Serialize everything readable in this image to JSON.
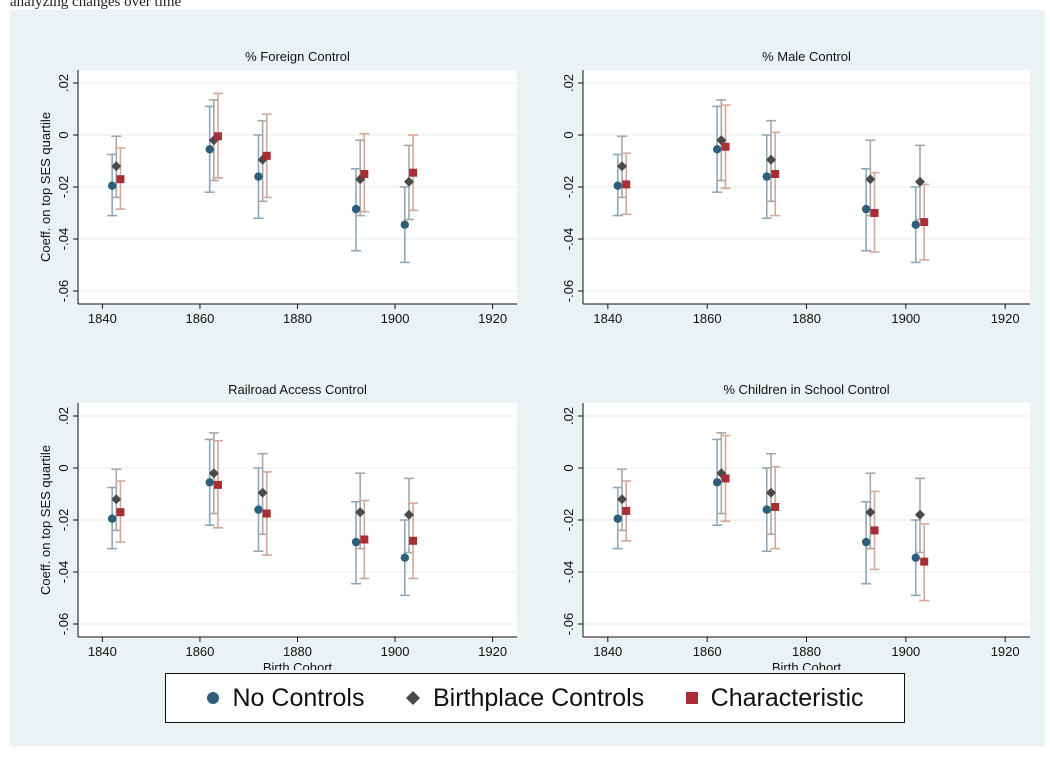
{
  "caption_fragment": "analyzing changes over time",
  "shared_axes": {
    "ylabel": "Coeff. on top SES quartile",
    "xlabel": "Birth Cohort",
    "xlim": [
      1835,
      1925
    ],
    "ylim": [
      -0.065,
      0.025
    ],
    "xticks": [
      1840,
      1860,
      1880,
      1900,
      1920
    ],
    "xtick_labels": [
      "1840",
      "1860",
      "1880",
      "1900",
      "1920"
    ],
    "yticks": [
      0.02,
      0,
      -0.02,
      -0.04,
      -0.06
    ],
    "ytick_labels": [
      ".02",
      "0",
      "-.02",
      "-.04",
      "-.06"
    ],
    "grid": "horizontal"
  },
  "series_styles": [
    {
      "name": "No Controls",
      "color": "#2d5f7a",
      "error_color": "#8fa8ba",
      "marker": "circle"
    },
    {
      "name": "Birthplace Controls",
      "color": "#4a4a4a",
      "error_color": "#a8a8a8",
      "marker": "diamond"
    },
    {
      "name": "Characteristic",
      "color": "#a82d35",
      "error_color": "#d4a89a",
      "marker": "square"
    }
  ],
  "chart_data": [
    {
      "type": "scatter",
      "title": "% Foreign Control",
      "x": [
        1842,
        1862,
        1872,
        1892,
        1902
      ],
      "series": [
        {
          "name": "No Controls",
          "x_offset": 0,
          "values": [
            -0.0195,
            -0.0055,
            -0.016,
            -0.0285,
            -0.0345
          ],
          "lower": [
            -0.031,
            -0.022,
            -0.032,
            -0.0445,
            -0.049
          ],
          "upper": [
            -0.0075,
            0.011,
            0.0,
            -0.013,
            -0.02
          ]
        },
        {
          "name": "Birthplace Controls",
          "x_offset": 1,
          "values": [
            -0.012,
            -0.002,
            -0.0095,
            -0.017,
            -0.018
          ],
          "lower": [
            -0.024,
            -0.0175,
            -0.0255,
            -0.031,
            -0.0325
          ],
          "upper": [
            -0.0005,
            0.0135,
            0.0055,
            -0.002,
            -0.004
          ]
        },
        {
          "name": "Characteristic",
          "x_offset": 2,
          "values": [
            -0.017,
            -0.0005,
            -0.008,
            -0.015,
            -0.0145
          ],
          "lower": [
            -0.0285,
            -0.0165,
            -0.024,
            -0.0295,
            -0.029
          ],
          "upper": [
            -0.005,
            0.016,
            0.008,
            0.0005,
            0.0
          ]
        }
      ]
    },
    {
      "type": "scatter",
      "title": "% Male Control",
      "x": [
        1842,
        1862,
        1872,
        1892,
        1902
      ],
      "series": [
        {
          "name": "No Controls",
          "x_offset": 0,
          "values": [
            -0.0195,
            -0.0055,
            -0.016,
            -0.0285,
            -0.0345
          ],
          "lower": [
            -0.031,
            -0.022,
            -0.032,
            -0.0445,
            -0.049
          ],
          "upper": [
            -0.0075,
            0.011,
            0.0,
            -0.013,
            -0.02
          ]
        },
        {
          "name": "Birthplace Controls",
          "x_offset": 1,
          "values": [
            -0.012,
            -0.002,
            -0.0095,
            -0.017,
            -0.018
          ],
          "lower": [
            -0.024,
            -0.0175,
            -0.0255,
            -0.031,
            -0.0325
          ],
          "upper": [
            -0.0005,
            0.0135,
            0.0055,
            -0.002,
            -0.004
          ]
        },
        {
          "name": "Characteristic",
          "x_offset": 2,
          "values": [
            -0.019,
            -0.0045,
            -0.015,
            -0.03,
            -0.0335
          ],
          "lower": [
            -0.0305,
            -0.0205,
            -0.031,
            -0.045,
            -0.048
          ],
          "upper": [
            -0.007,
            0.0115,
            0.001,
            -0.0145,
            -0.019
          ]
        }
      ]
    },
    {
      "type": "scatter",
      "title": "Railroad Access Control",
      "x": [
        1842,
        1862,
        1872,
        1892,
        1902
      ],
      "series": [
        {
          "name": "No Controls",
          "x_offset": 0,
          "values": [
            -0.0195,
            -0.0055,
            -0.016,
            -0.0285,
            -0.0345
          ],
          "lower": [
            -0.031,
            -0.022,
            -0.032,
            -0.0445,
            -0.049
          ],
          "upper": [
            -0.0075,
            0.011,
            0.0,
            -0.013,
            -0.02
          ]
        },
        {
          "name": "Birthplace Controls",
          "x_offset": 1,
          "values": [
            -0.012,
            -0.002,
            -0.0095,
            -0.017,
            -0.018
          ],
          "lower": [
            -0.024,
            -0.0175,
            -0.0255,
            -0.031,
            -0.0325
          ],
          "upper": [
            -0.0005,
            0.0135,
            0.0055,
            -0.002,
            -0.004
          ]
        },
        {
          "name": "Characteristic",
          "x_offset": 2,
          "values": [
            -0.017,
            -0.0065,
            -0.0175,
            -0.0275,
            -0.028
          ],
          "lower": [
            -0.0285,
            -0.023,
            -0.0335,
            -0.0425,
            -0.0425
          ],
          "upper": [
            -0.005,
            0.0105,
            -0.0015,
            -0.0125,
            -0.0135
          ]
        }
      ]
    },
    {
      "type": "scatter",
      "title": "% Children in School Control",
      "x": [
        1842,
        1862,
        1872,
        1892,
        1902
      ],
      "series": [
        {
          "name": "No Controls",
          "x_offset": 0,
          "values": [
            -0.0195,
            -0.0055,
            -0.016,
            -0.0285,
            -0.0345
          ],
          "lower": [
            -0.031,
            -0.022,
            -0.032,
            -0.0445,
            -0.049
          ],
          "upper": [
            -0.0075,
            0.011,
            0.0,
            -0.013,
            -0.02
          ]
        },
        {
          "name": "Birthplace Controls",
          "x_offset": 1,
          "values": [
            -0.012,
            -0.002,
            -0.0095,
            -0.017,
            -0.018
          ],
          "lower": [
            -0.024,
            -0.0175,
            -0.0255,
            -0.031,
            -0.0325
          ],
          "upper": [
            -0.0005,
            0.0135,
            0.0055,
            -0.002,
            -0.004
          ]
        },
        {
          "name": "Characteristic",
          "x_offset": 2,
          "values": [
            -0.0165,
            -0.004,
            -0.015,
            -0.024,
            -0.036
          ],
          "lower": [
            -0.028,
            -0.0205,
            -0.031,
            -0.039,
            -0.051
          ],
          "upper": [
            -0.005,
            0.0125,
            0.0005,
            -0.009,
            -0.0215
          ]
        }
      ]
    }
  ]
}
